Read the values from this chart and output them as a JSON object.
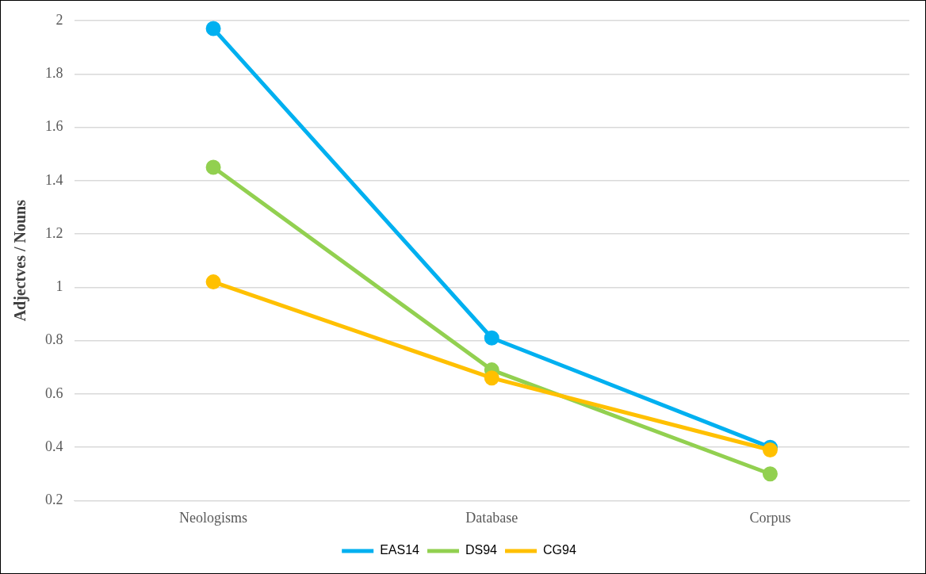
{
  "chart_data": {
    "type": "line",
    "ylabel": "Adjectves / Nouns",
    "categories": [
      "Neologisms",
      "Database",
      "Corpus"
    ],
    "series": [
      {
        "name": "EAS14",
        "color": "#00b0f0",
        "values": [
          1.97,
          0.81,
          0.4
        ]
      },
      {
        "name": "DS94",
        "color": "#92d050",
        "values": [
          1.45,
          0.69,
          0.3
        ]
      },
      {
        "name": "CG94",
        "color": "#ffc000",
        "values": [
          1.02,
          0.66,
          0.39
        ]
      }
    ],
    "ylim": [
      0.2,
      2
    ],
    "yticks": [
      0.2,
      0.4,
      0.6,
      0.8,
      1,
      1.2,
      1.4,
      1.6,
      1.8,
      2
    ],
    "grid": "y",
    "legend": "bottom",
    "marker": "circle",
    "line_style": "solid"
  }
}
